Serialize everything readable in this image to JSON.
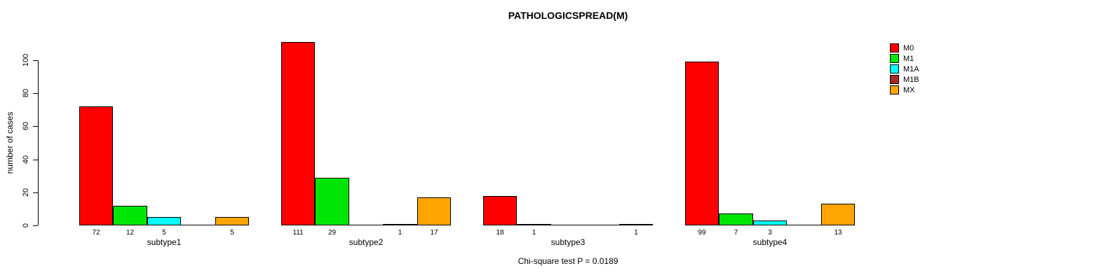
{
  "chart_data": {
    "type": "bar",
    "title": "PATHOLOGICSPREAD(M)",
    "ylabel": "number of cases",
    "xlabel": "",
    "annotation": "Chi-square test P = 0.0189",
    "categories": [
      "subtype1",
      "subtype2",
      "subtype3",
      "subtype4"
    ],
    "series": [
      {
        "name": "M0",
        "color": "#FF0000",
        "values": [
          72,
          111,
          18,
          99
        ]
      },
      {
        "name": "M1",
        "color": "#00E604",
        "values": [
          12,
          29,
          1,
          7
        ]
      },
      {
        "name": "M1A",
        "color": "#00FFFF",
        "values": [
          5,
          0,
          0,
          3
        ]
      },
      {
        "name": "M1B",
        "color": "#A52A2A",
        "values": [
          0,
          1,
          0,
          0
        ]
      },
      {
        "name": "MX",
        "color": "#FFA500",
        "values": [
          5,
          17,
          1,
          13
        ]
      }
    ],
    "yticks": [
      0,
      20,
      40,
      60,
      80,
      100
    ],
    "ylim": [
      0,
      111
    ],
    "grid": false,
    "legend_position": "top-right",
    "bar_value_labels_shown": true,
    "zero_bars_drawn_as_flat_line": true,
    "axis_color": "#000000",
    "background_color": "#ffffff"
  }
}
